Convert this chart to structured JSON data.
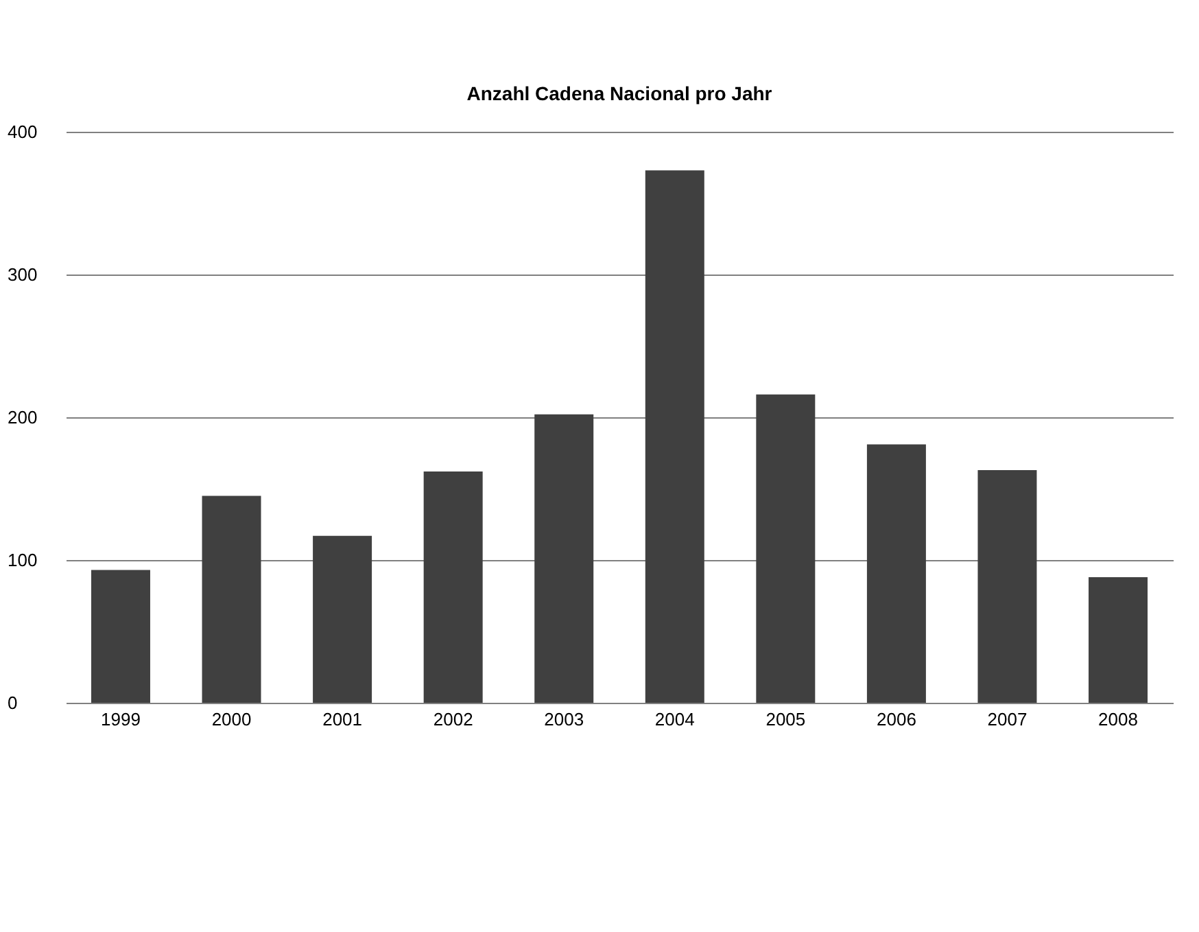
{
  "chart_data": {
    "type": "bar",
    "title": "Anzahl Cadena Nacional pro Jahr",
    "categories": [
      "1999",
      "2000",
      "2001",
      "2002",
      "2003",
      "2004",
      "2005",
      "2006",
      "2007",
      "2008"
    ],
    "values": [
      93,
      145,
      117,
      162,
      202,
      373,
      216,
      181,
      163,
      88
    ],
    "color": "#404040",
    "ylim": [
      0,
      400
    ],
    "yticks": [
      0,
      100,
      200,
      300,
      400
    ],
    "grid": "y"
  }
}
